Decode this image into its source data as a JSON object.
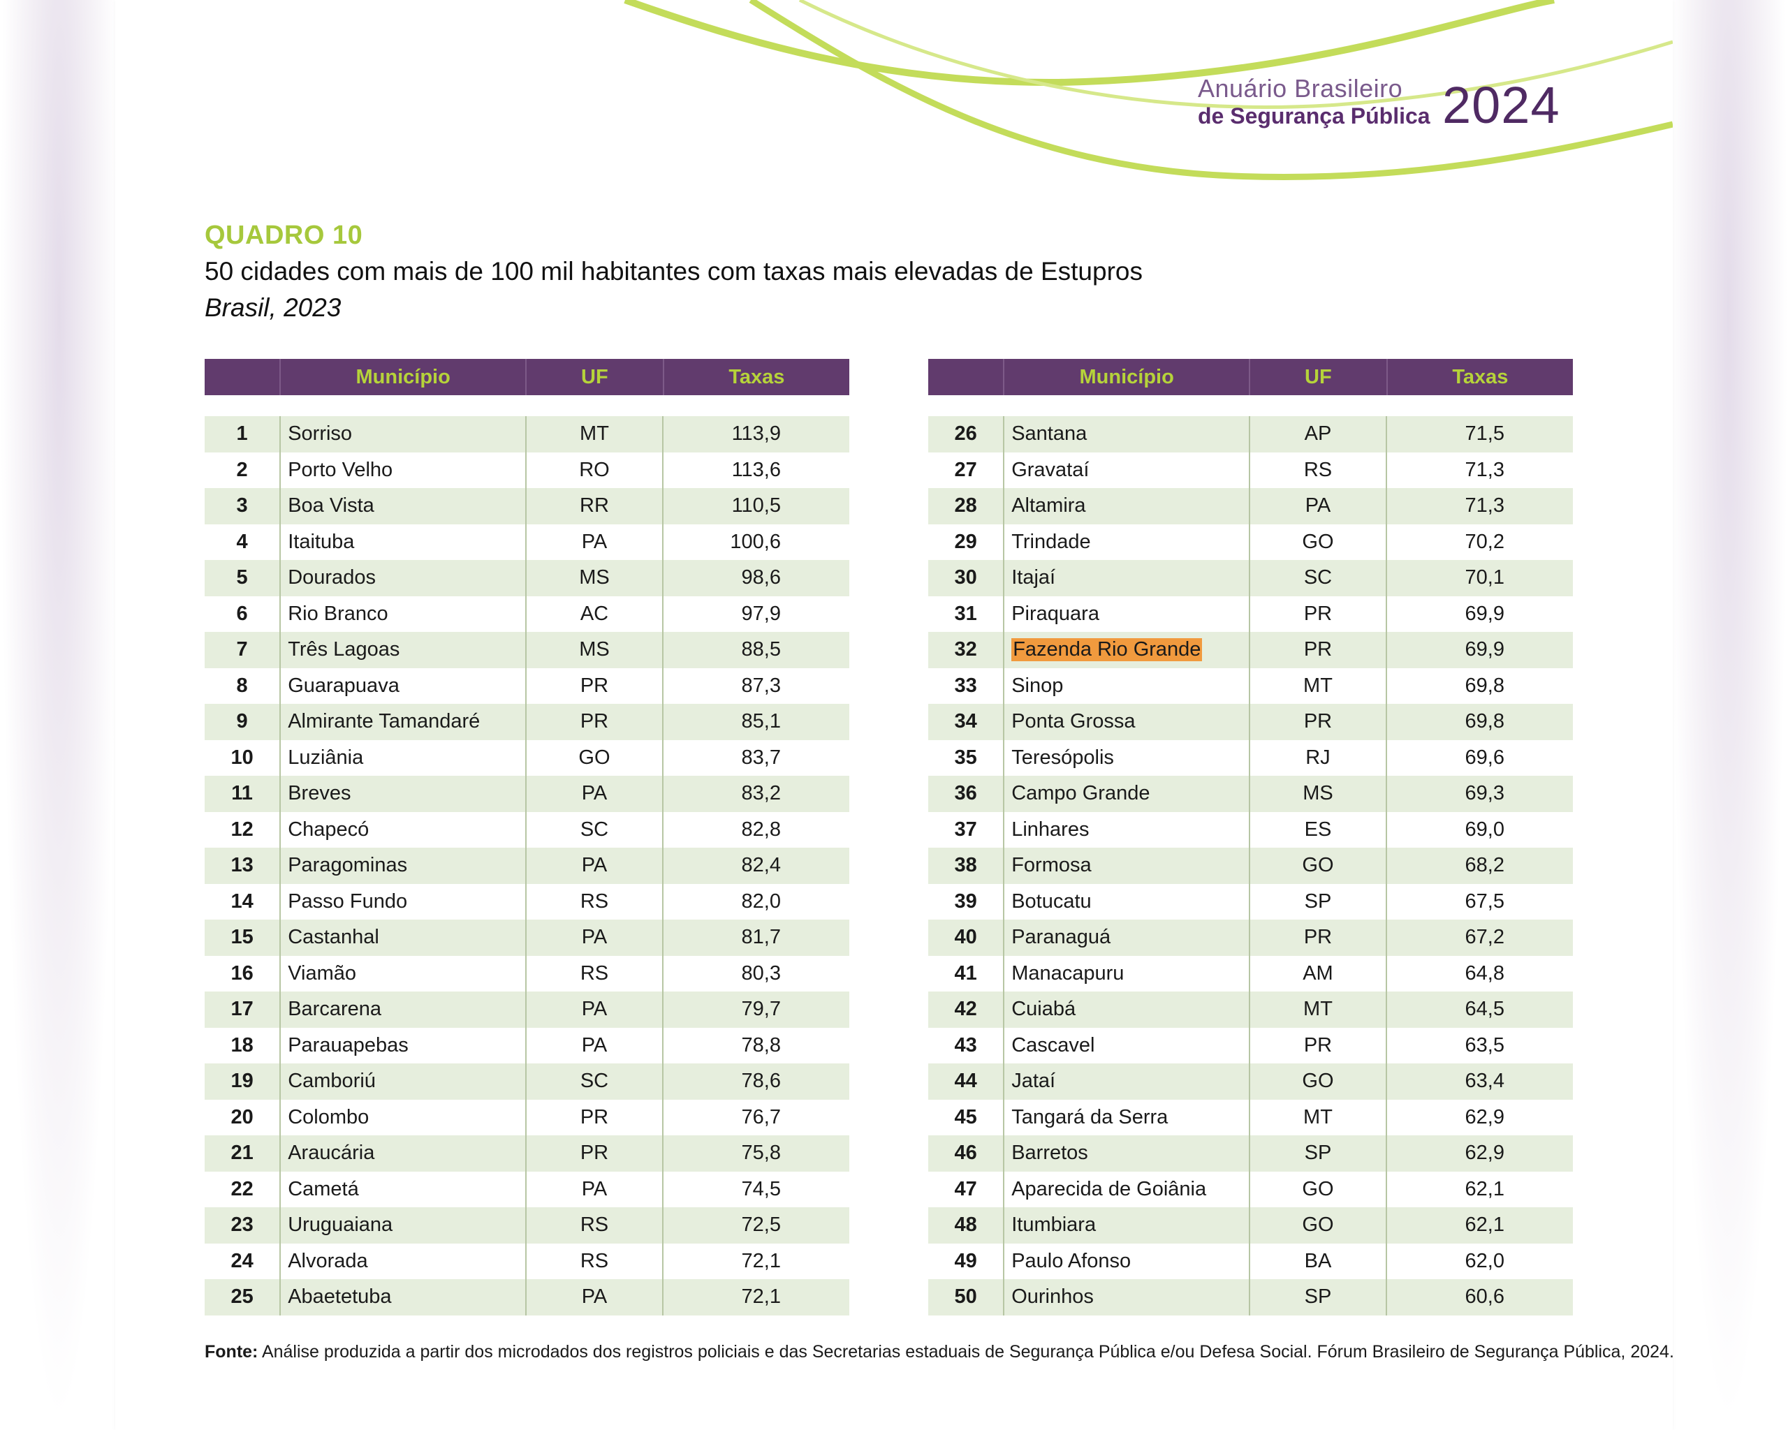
{
  "header": {
    "brand_line1": "Anuário Brasileiro",
    "brand_line2": "de Segurança Pública",
    "year": "2024",
    "colors": {
      "accent_green": "#b6d33a",
      "brand_purple": "#5a2d6e",
      "header_bg": "#613b6d",
      "row_stripe": "#e6eedd",
      "highlight": "#f19a3e"
    }
  },
  "quadro_label": "QUADRO 10",
  "title": "50 cidades com mais de 100 mil habitantes com taxas mais elevadas de Estupros",
  "subtitle": "Brasil, 2023",
  "columns": {
    "rank": "",
    "municipio": "Município",
    "uf": "UF",
    "taxas": "Taxas"
  },
  "table_left": [
    {
      "rank": "1",
      "municipio": "Sorriso",
      "uf": "MT",
      "taxa": "113,9"
    },
    {
      "rank": "2",
      "municipio": "Porto Velho",
      "uf": "RO",
      "taxa": "113,6"
    },
    {
      "rank": "3",
      "municipio": "Boa Vista",
      "uf": "RR",
      "taxa": "110,5"
    },
    {
      "rank": "4",
      "municipio": "Itaituba",
      "uf": "PA",
      "taxa": "100,6"
    },
    {
      "rank": "5",
      "municipio": "Dourados",
      "uf": "MS",
      "taxa": "98,6"
    },
    {
      "rank": "6",
      "municipio": "Rio Branco",
      "uf": "AC",
      "taxa": "97,9"
    },
    {
      "rank": "7",
      "municipio": "Três Lagoas",
      "uf": "MS",
      "taxa": "88,5"
    },
    {
      "rank": "8",
      "municipio": "Guarapuava",
      "uf": "PR",
      "taxa": "87,3"
    },
    {
      "rank": "9",
      "municipio": "Almirante Tamandaré",
      "uf": "PR",
      "taxa": "85,1"
    },
    {
      "rank": "10",
      "municipio": "Luziânia",
      "uf": "GO",
      "taxa": "83,7"
    },
    {
      "rank": "11",
      "municipio": "Breves",
      "uf": "PA",
      "taxa": "83,2"
    },
    {
      "rank": "12",
      "municipio": "Chapecó",
      "uf": "SC",
      "taxa": "82,8"
    },
    {
      "rank": "13",
      "municipio": "Paragominas",
      "uf": "PA",
      "taxa": "82,4"
    },
    {
      "rank": "14",
      "municipio": "Passo Fundo",
      "uf": "RS",
      "taxa": "82,0"
    },
    {
      "rank": "15",
      "municipio": "Castanhal",
      "uf": "PA",
      "taxa": "81,7"
    },
    {
      "rank": "16",
      "municipio": "Viamão",
      "uf": "RS",
      "taxa": "80,3"
    },
    {
      "rank": "17",
      "municipio": "Barcarena",
      "uf": "PA",
      "taxa": "79,7"
    },
    {
      "rank": "18",
      "municipio": "Parauapebas",
      "uf": "PA",
      "taxa": "78,8"
    },
    {
      "rank": "19",
      "municipio": "Camboriú",
      "uf": "SC",
      "taxa": "78,6"
    },
    {
      "rank": "20",
      "municipio": "Colombo",
      "uf": "PR",
      "taxa": "76,7"
    },
    {
      "rank": "21",
      "municipio": "Araucária",
      "uf": "PR",
      "taxa": "75,8"
    },
    {
      "rank": "22",
      "municipio": "Cametá",
      "uf": "PA",
      "taxa": "74,5"
    },
    {
      "rank": "23",
      "municipio": "Uruguaiana",
      "uf": "RS",
      "taxa": "72,5"
    },
    {
      "rank": "24",
      "municipio": "Alvorada",
      "uf": "RS",
      "taxa": "72,1"
    },
    {
      "rank": "25",
      "municipio": "Abaetetuba",
      "uf": "PA",
      "taxa": "72,1"
    }
  ],
  "table_right": [
    {
      "rank": "26",
      "municipio": "Santana",
      "uf": "AP",
      "taxa": "71,5"
    },
    {
      "rank": "27",
      "municipio": "Gravataí",
      "uf": "RS",
      "taxa": "71,3"
    },
    {
      "rank": "28",
      "municipio": "Altamira",
      "uf": "PA",
      "taxa": "71,3"
    },
    {
      "rank": "29",
      "municipio": "Trindade",
      "uf": "GO",
      "taxa": "70,2"
    },
    {
      "rank": "30",
      "municipio": "Itajaí",
      "uf": "SC",
      "taxa": "70,1"
    },
    {
      "rank": "31",
      "municipio": "Piraquara",
      "uf": "PR",
      "taxa": "69,9"
    },
    {
      "rank": "32",
      "municipio": "Fazenda Rio Grande",
      "uf": "PR",
      "taxa": "69,9",
      "highlight": true
    },
    {
      "rank": "33",
      "municipio": "Sinop",
      "uf": "MT",
      "taxa": "69,8"
    },
    {
      "rank": "34",
      "municipio": "Ponta Grossa",
      "uf": "PR",
      "taxa": "69,8"
    },
    {
      "rank": "35",
      "municipio": "Teresópolis",
      "uf": "RJ",
      "taxa": "69,6"
    },
    {
      "rank": "36",
      "municipio": "Campo Grande",
      "uf": "MS",
      "taxa": "69,3"
    },
    {
      "rank": "37",
      "municipio": "Linhares",
      "uf": "ES",
      "taxa": "69,0"
    },
    {
      "rank": "38",
      "municipio": "Formosa",
      "uf": "GO",
      "taxa": "68,2"
    },
    {
      "rank": "39",
      "municipio": "Botucatu",
      "uf": "SP",
      "taxa": "67,5"
    },
    {
      "rank": "40",
      "municipio": "Paranaguá",
      "uf": "PR",
      "taxa": "67,2"
    },
    {
      "rank": "41",
      "municipio": "Manacapuru",
      "uf": "AM",
      "taxa": "64,8"
    },
    {
      "rank": "42",
      "municipio": "Cuiabá",
      "uf": "MT",
      "taxa": "64,5"
    },
    {
      "rank": "43",
      "municipio": "Cascavel",
      "uf": "PR",
      "taxa": "63,5"
    },
    {
      "rank": "44",
      "municipio": "Jataí",
      "uf": "GO",
      "taxa": "63,4"
    },
    {
      "rank": "45",
      "municipio": "Tangará da Serra",
      "uf": "MT",
      "taxa": "62,9"
    },
    {
      "rank": "46",
      "municipio": "Barretos",
      "uf": "SP",
      "taxa": "62,9"
    },
    {
      "rank": "47",
      "municipio": "Aparecida de Goiânia",
      "uf": "GO",
      "taxa": "62,1"
    },
    {
      "rank": "48",
      "municipio": "Itumbiara",
      "uf": "GO",
      "taxa": "62,1"
    },
    {
      "rank": "49",
      "municipio": "Paulo Afonso",
      "uf": "BA",
      "taxa": "62,0"
    },
    {
      "rank": "50",
      "municipio": "Ourinhos",
      "uf": "SP",
      "taxa": "60,6"
    }
  ],
  "source": {
    "label": "Fonte:",
    "text": " Análise produzida a partir dos microdados dos registros policiais e das Secretarias estaduais de Segurança Pública e/ou Defesa Social. Fórum Brasileiro de Segurança Pública, 2024."
  }
}
